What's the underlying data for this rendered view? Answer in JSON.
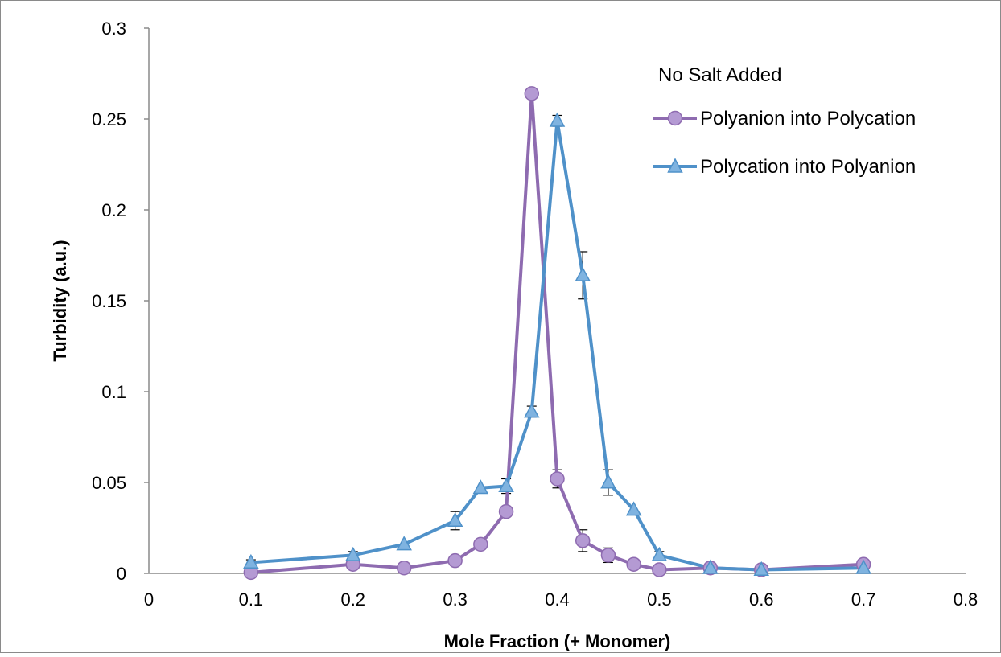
{
  "chart_data": {
    "type": "line",
    "title": "",
    "xlabel": "Mole Fraction (+ Monomer)",
    "ylabel": "Turbidity (a.u.)",
    "xlim": [
      0,
      0.8
    ],
    "ylim": [
      0,
      0.3
    ],
    "x_ticks": [
      "0",
      "0.1",
      "0.2",
      "0.3",
      "0.4",
      "0.5",
      "0.6",
      "0.7",
      "0.8"
    ],
    "y_ticks": [
      "0",
      "0.05",
      "0.1",
      "0.15",
      "0.2",
      "0.25",
      "0.3"
    ],
    "grid": false,
    "legend_title": "No Salt Added",
    "legend_position": "top-right",
    "series": [
      {
        "name": "Polyanion into Polycation",
        "marker": "circle",
        "color": "#8e6bb0",
        "fill": "#b49ad3",
        "x": [
          0.1,
          0.2,
          0.25,
          0.3,
          0.325,
          0.35,
          0.375,
          0.4,
          0.425,
          0.45,
          0.475,
          0.5,
          0.55,
          0.6,
          0.7
        ],
        "y": [
          0.0005,
          0.005,
          0.003,
          0.007,
          0.016,
          0.034,
          0.264,
          0.052,
          0.018,
          0.01,
          0.005,
          0.002,
          0.003,
          0.002,
          0.005
        ],
        "error": [
          0,
          0,
          0,
          0,
          0,
          0,
          0,
          0.005,
          0.006,
          0.004,
          0,
          0,
          0,
          0,
          0
        ]
      },
      {
        "name": "Polycation into Polyanion",
        "marker": "triangle",
        "color": "#4f91c9",
        "fill": "#7fb3e0",
        "x": [
          0.1,
          0.2,
          0.25,
          0.3,
          0.325,
          0.35,
          0.375,
          0.4,
          0.425,
          0.45,
          0.475,
          0.5,
          0.55,
          0.6,
          0.7
        ],
        "y": [
          0.006,
          0.01,
          0.016,
          0.029,
          0.047,
          0.048,
          0.089,
          0.249,
          0.164,
          0.05,
          0.035,
          0.01,
          0.003,
          0.002,
          0.003
        ],
        "error": [
          0.0015,
          0.002,
          0,
          0.005,
          0,
          0.004,
          0.003,
          0.003,
          0.013,
          0.007,
          0,
          0.002,
          0,
          0,
          0
        ]
      }
    ]
  }
}
